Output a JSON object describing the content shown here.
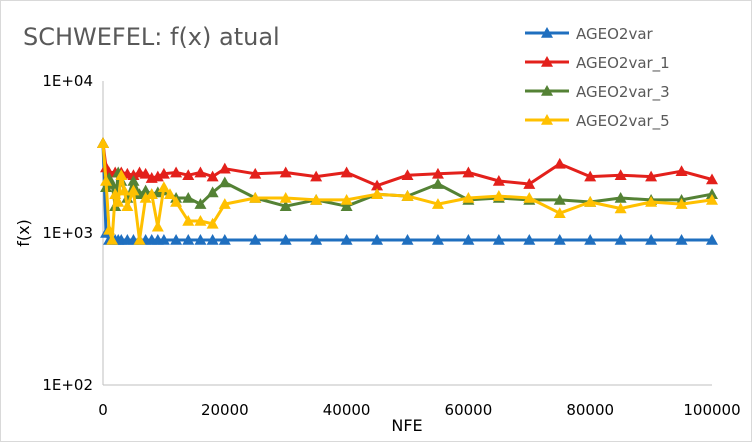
{
  "chart_data": {
    "type": "line",
    "title": "SCHWEFEL: f(x) atual",
    "xlabel": "NFE",
    "ylabel": "f(x)",
    "xlim": [
      0,
      100000
    ],
    "ylim": [
      100,
      10000
    ],
    "yscale": "log",
    "x_ticks": [
      0,
      20000,
      40000,
      60000,
      80000,
      100000
    ],
    "x_tick_labels": [
      "0",
      "20000",
      "40000",
      "60000",
      "80000",
      "100000"
    ],
    "y_ticks": [
      100,
      1000,
      10000
    ],
    "y_tick_labels": [
      "1E+02",
      "1E+03",
      "1E+04"
    ],
    "grid": false,
    "legend_position": "top-right",
    "series": [
      {
        "name": "AGEO2var",
        "color": "#1f6fbf",
        "x": [
          0,
          500,
          1000,
          1500,
          2000,
          2500,
          3000,
          4000,
          5000,
          6000,
          7000,
          8000,
          9000,
          10000,
          12000,
          14000,
          16000,
          18000,
          20000,
          25000,
          30000,
          35000,
          40000,
          45000,
          50000,
          55000,
          60000,
          65000,
          70000,
          75000,
          80000,
          85000,
          90000,
          95000,
          100000
        ],
        "y": [
          3900,
          1000,
          900,
          900,
          900,
          900,
          900,
          900,
          900,
          900,
          900,
          900,
          900,
          900,
          900,
          900,
          900,
          900,
          900,
          900,
          900,
          900,
          900,
          900,
          900,
          900,
          900,
          900,
          900,
          900,
          900,
          900,
          900,
          900,
          900
        ]
      },
      {
        "name": "AGEO2var_1",
        "color": "#e3201b",
        "x": [
          0,
          500,
          1000,
          2000,
          3000,
          4000,
          5000,
          6000,
          7000,
          8000,
          9000,
          10000,
          12000,
          14000,
          16000,
          18000,
          20000,
          25000,
          30000,
          35000,
          40000,
          45000,
          50000,
          55000,
          60000,
          65000,
          70000,
          75000,
          80000,
          85000,
          90000,
          95000,
          100000
        ],
        "y": [
          3900,
          2700,
          2500,
          2500,
          2500,
          2450,
          2400,
          2500,
          2450,
          2300,
          2350,
          2450,
          2500,
          2400,
          2500,
          2350,
          2650,
          2450,
          2500,
          2350,
          2500,
          2050,
          2400,
          2450,
          2500,
          2200,
          2100,
          2850,
          2350,
          2400,
          2350,
          2550,
          2250
        ]
      },
      {
        "name": "AGEO2var_3",
        "color": "#548235",
        "x": [
          0,
          500,
          1000,
          1500,
          2000,
          2500,
          3000,
          4000,
          5000,
          6000,
          7000,
          8000,
          9000,
          10000,
          12000,
          14000,
          16000,
          18000,
          20000,
          25000,
          30000,
          35000,
          40000,
          45000,
          50000,
          55000,
          60000,
          65000,
          70000,
          75000,
          80000,
          85000,
          90000,
          95000,
          100000
        ],
        "y": [
          3900,
          2000,
          2300,
          2100,
          1500,
          2500,
          2200,
          1700,
          2200,
          1800,
          1900,
          1800,
          1850,
          1900,
          1700,
          1700,
          1550,
          1850,
          2150,
          1700,
          1500,
          1650,
          1500,
          1800,
          1750,
          2100,
          1650,
          1700,
          1650,
          1650,
          1600,
          1700,
          1650,
          1650,
          1800
        ]
      },
      {
        "name": "AGEO2var_5",
        "color": "#ffc000",
        "x": [
          0,
          500,
          1000,
          1500,
          2000,
          2500,
          3000,
          3500,
          4000,
          5000,
          6000,
          7000,
          8000,
          9000,
          10000,
          11000,
          12000,
          14000,
          16000,
          18000,
          20000,
          25000,
          30000,
          35000,
          40000,
          45000,
          50000,
          55000,
          60000,
          65000,
          70000,
          75000,
          80000,
          85000,
          90000,
          95000,
          100000
        ],
        "y": [
          3900,
          2200,
          1050,
          900,
          1800,
          1600,
          2400,
          1900,
          1500,
          1900,
          900,
          1700,
          1800,
          1100,
          2000,
          1800,
          1600,
          1200,
          1200,
          1150,
          1550,
          1700,
          1700,
          1650,
          1650,
          1800,
          1750,
          1550,
          1700,
          1750,
          1700,
          1350,
          1600,
          1450,
          1600,
          1550,
          1650
        ]
      }
    ]
  }
}
